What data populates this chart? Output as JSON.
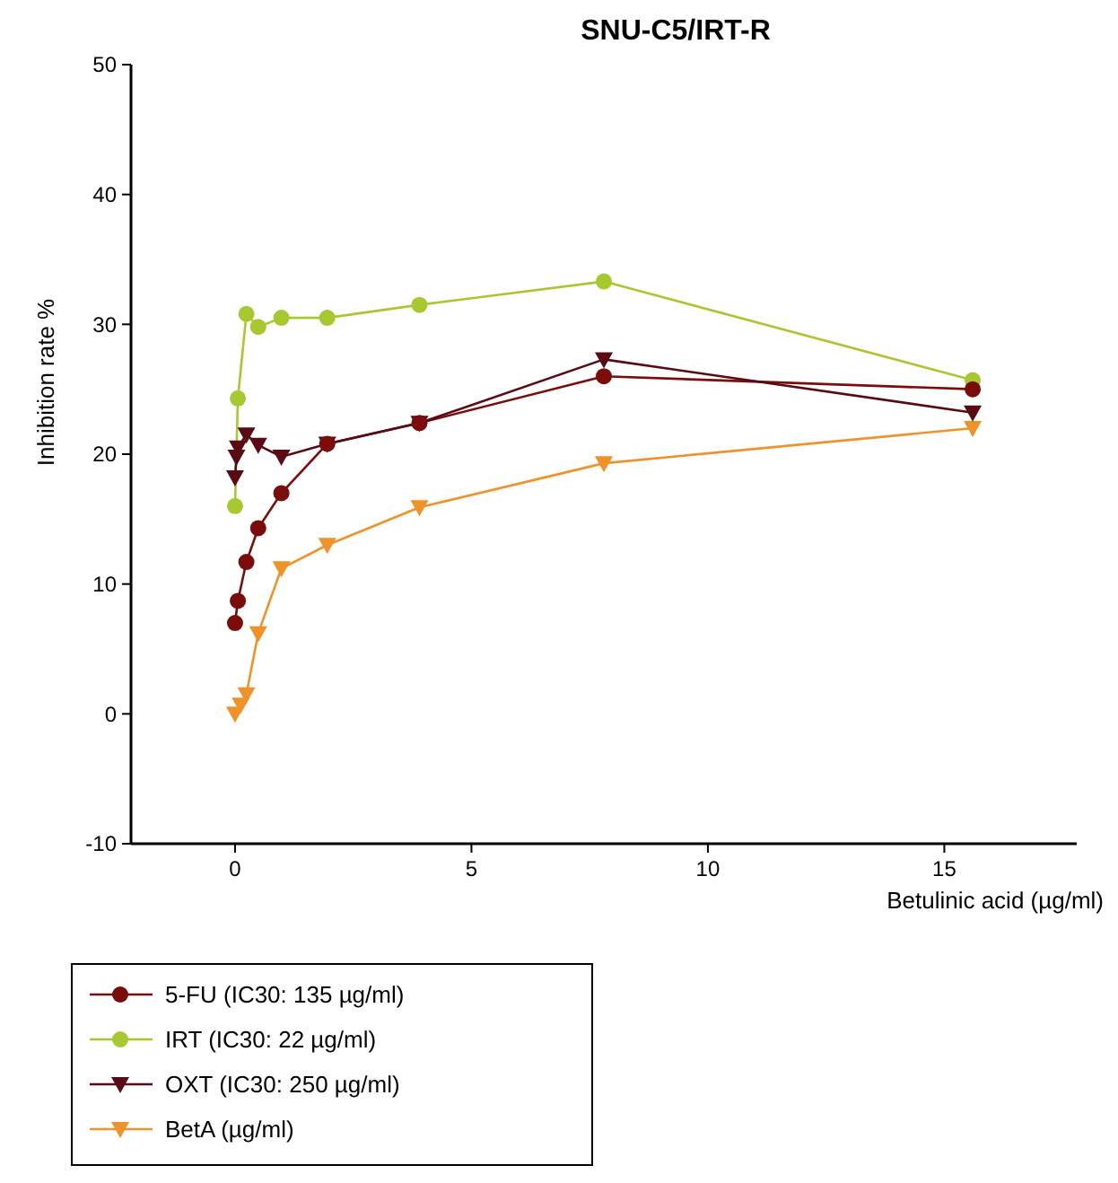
{
  "chart_data": {
    "type": "line",
    "title": "SNU-C5/IRT-R",
    "xlabel": "Betulinic acid (µg/ml)",
    "ylabel": "Inhibition rate %",
    "xlim": [
      -2.2,
      17.8
    ],
    "xticks": [
      0,
      5,
      10,
      15
    ],
    "ylim": [
      -10,
      50
    ],
    "yticks": [
      -10,
      0,
      10,
      20,
      30,
      40,
      50
    ],
    "grid": false,
    "legend": "bottom",
    "series": [
      {
        "name": "5-FU (IC30: 135 µg/ml)",
        "color": "#7b0c0c",
        "marker": "circle",
        "x": [
          0,
          0.06,
          0.24,
          0.49,
          0.98,
          1.95,
          3.9,
          7.8,
          15.6
        ],
        "values": [
          7.0,
          8.7,
          11.7,
          14.3,
          17.0,
          20.8,
          22.4,
          26.0,
          25.0
        ]
      },
      {
        "name": "IRT (IC30: 22 µg/ml)",
        "color": "#a8c832",
        "marker": "circle",
        "x": [
          0,
          0.06,
          0.24,
          0.49,
          0.98,
          1.95,
          3.9,
          7.8,
          15.6
        ],
        "values": [
          16.0,
          24.3,
          30.8,
          29.8,
          30.5,
          30.5,
          31.5,
          33.3,
          25.7
        ]
      },
      {
        "name": "OXT (IC30: 250 µg/ml)",
        "color": "#5a0a14",
        "marker": "triangle",
        "x": [
          0,
          0.03,
          0.06,
          0.24,
          0.49,
          0.98,
          1.95,
          3.9,
          7.8,
          15.6
        ],
        "values": [
          18.2,
          19.8,
          20.5,
          21.5,
          20.7,
          19.8,
          20.8,
          22.4,
          27.3,
          23.2
        ]
      },
      {
        "name": "BetA (µg/ml)",
        "color": "#f0922a",
        "marker": "triangle",
        "x": [
          0,
          0.12,
          0.24,
          0.49,
          0.98,
          1.95,
          3.9,
          7.8,
          15.6
        ],
        "values": [
          0.0,
          0.7,
          1.5,
          6.2,
          11.2,
          13.0,
          15.9,
          19.3,
          22.0
        ]
      }
    ]
  }
}
